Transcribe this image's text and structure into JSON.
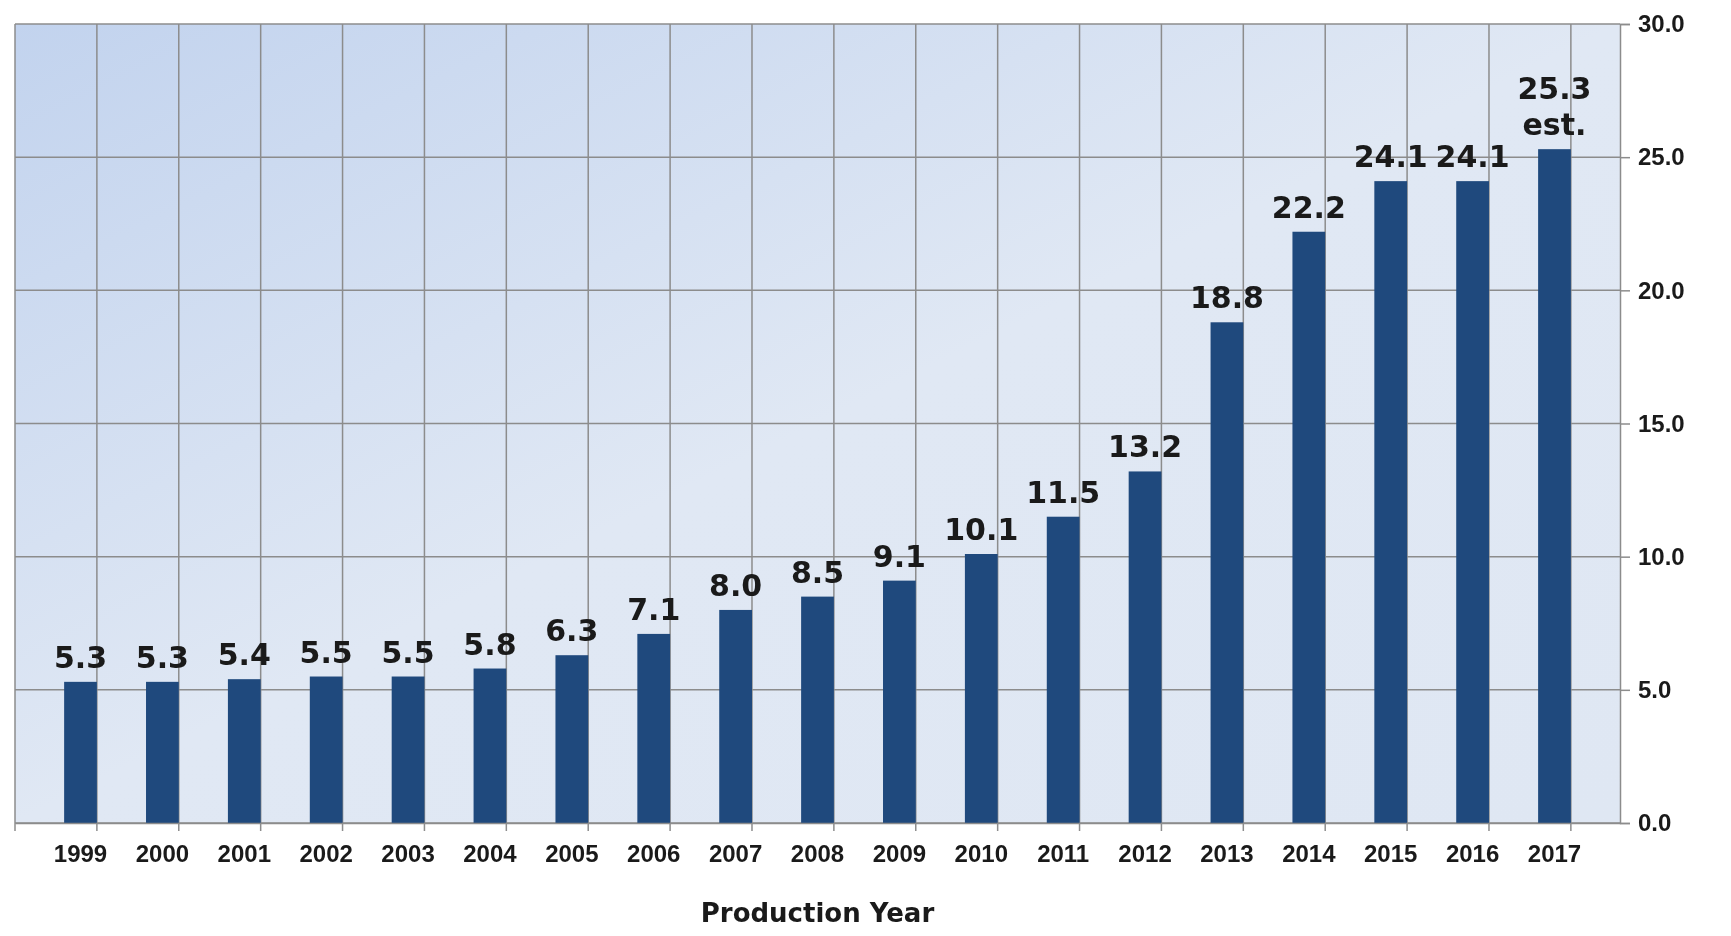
{
  "chart_data": {
    "type": "bar",
    "xlabel": "Production Year",
    "categories": [
      "1999",
      "2000",
      "2001",
      "2002",
      "2003",
      "2004",
      "2005",
      "2006",
      "2007",
      "2008",
      "2009",
      "2010",
      "2011",
      "2012",
      "2013",
      "2014",
      "2015",
      "2016",
      "2017"
    ],
    "values": [
      5.3,
      5.3,
      5.4,
      5.5,
      5.5,
      5.8,
      6.3,
      7.1,
      8.0,
      8.5,
      9.1,
      10.1,
      11.5,
      13.2,
      18.8,
      22.2,
      24.1,
      24.1,
      25.3
    ],
    "color": "#1f497d",
    "ylim": [
      0,
      30
    ],
    "yticks": [
      {
        "value": 0,
        "label": "0.0"
      },
      {
        "value": 5,
        "label": "5.0"
      },
      {
        "value": 10,
        "label": "10.0"
      },
      {
        "value": 15,
        "label": "15.0"
      },
      {
        "value": 20,
        "label": "20.0"
      },
      {
        "value": 25,
        "label": "25.0"
      },
      {
        "value": 30,
        "label": "30.0"
      }
    ],
    "value_labels": [
      "5.3",
      "5.3",
      "5.4",
      "5.5",
      "5.5",
      "5.8",
      "6.3",
      "7.1",
      "8.0",
      "8.5",
      "9.1",
      "10.1",
      "11.5",
      "13.2",
      "18.8",
      "22.2",
      "24.1",
      "24.1",
      "25.3"
    ],
    "grid": true,
    "annotations": [
      {
        "text": "est.",
        "x": "2017",
        "y": 25.3
      }
    ]
  }
}
